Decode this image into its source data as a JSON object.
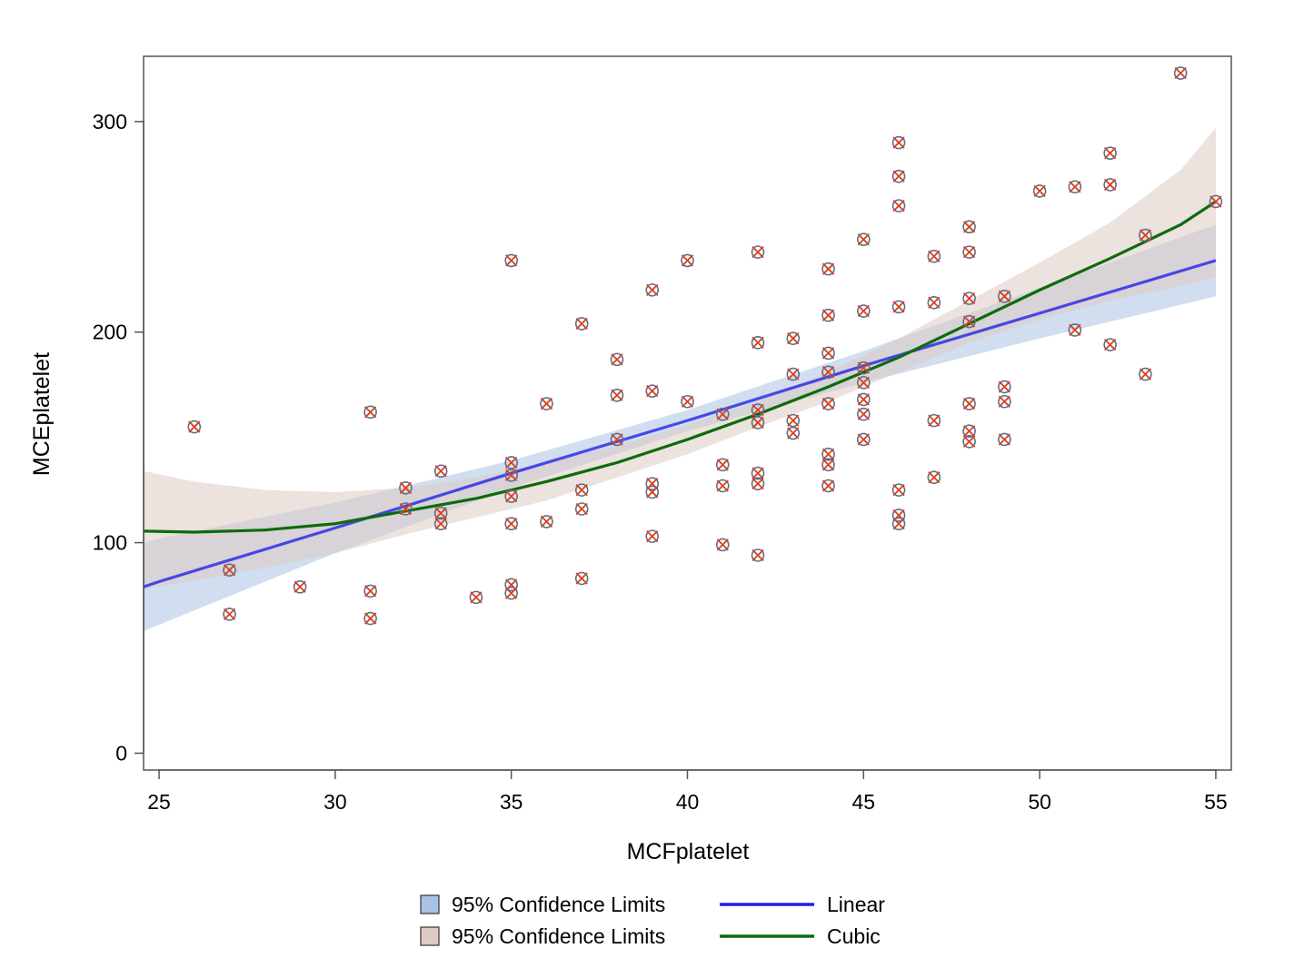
{
  "chart_data": {
    "type": "scatter",
    "xlabel": "MCFplatelet",
    "ylabel": "MCEplatelet",
    "xlim": [
      24.56,
      55.44
    ],
    "ylim": [
      -8,
      331
    ],
    "x_ticks": [
      25,
      30,
      35,
      40,
      45,
      50,
      55
    ],
    "x_tick_labels": [
      "25",
      "30",
      "35",
      "40",
      "45",
      "50",
      "55"
    ],
    "y_ticks": [
      0,
      100,
      200,
      300
    ],
    "y_tick_labels": [
      "0",
      "100",
      "200",
      "300"
    ],
    "grid": false,
    "legend_placement": "bottom-center",
    "colors": {
      "linear_band": "#a9c3e4",
      "cubic_band": "#dccbc2",
      "linear_line": "#1f1fe8",
      "cubic_line": "#0d6b0d",
      "marker_circle": "#5a6f8c",
      "marker_x": "#d9401c",
      "axis": "#555555"
    },
    "points": [
      {
        "x": 26,
        "y": 155
      },
      {
        "x": 27,
        "y": 87
      },
      {
        "x": 27,
        "y": 66
      },
      {
        "x": 29,
        "y": 79
      },
      {
        "x": 31,
        "y": 162
      },
      {
        "x": 31,
        "y": 77
      },
      {
        "x": 31,
        "y": 64
      },
      {
        "x": 32,
        "y": 126
      },
      {
        "x": 32,
        "y": 116
      },
      {
        "x": 33,
        "y": 134
      },
      {
        "x": 33,
        "y": 114
      },
      {
        "x": 33,
        "y": 109
      },
      {
        "x": 34,
        "y": 74
      },
      {
        "x": 35,
        "y": 234
      },
      {
        "x": 35,
        "y": 138
      },
      {
        "x": 35,
        "y": 132
      },
      {
        "x": 35,
        "y": 122
      },
      {
        "x": 35,
        "y": 109
      },
      {
        "x": 35,
        "y": 80
      },
      {
        "x": 35,
        "y": 76
      },
      {
        "x": 36,
        "y": 166
      },
      {
        "x": 36,
        "y": 110
      },
      {
        "x": 37,
        "y": 204
      },
      {
        "x": 37,
        "y": 125
      },
      {
        "x": 37,
        "y": 116
      },
      {
        "x": 37,
        "y": 83
      },
      {
        "x": 38,
        "y": 187
      },
      {
        "x": 38,
        "y": 170
      },
      {
        "x": 38,
        "y": 149
      },
      {
        "x": 39,
        "y": 220
      },
      {
        "x": 39,
        "y": 172
      },
      {
        "x": 39,
        "y": 128
      },
      {
        "x": 39,
        "y": 124
      },
      {
        "x": 39,
        "y": 103
      },
      {
        "x": 40,
        "y": 234
      },
      {
        "x": 40,
        "y": 167
      },
      {
        "x": 41,
        "y": 161
      },
      {
        "x": 41,
        "y": 137
      },
      {
        "x": 41,
        "y": 127
      },
      {
        "x": 41,
        "y": 99
      },
      {
        "x": 42,
        "y": 238
      },
      {
        "x": 42,
        "y": 195
      },
      {
        "x": 42,
        "y": 163
      },
      {
        "x": 42,
        "y": 157
      },
      {
        "x": 42,
        "y": 133
      },
      {
        "x": 42,
        "y": 128
      },
      {
        "x": 42,
        "y": 94
      },
      {
        "x": 43,
        "y": 197
      },
      {
        "x": 43,
        "y": 180
      },
      {
        "x": 43,
        "y": 158
      },
      {
        "x": 43,
        "y": 152
      },
      {
        "x": 44,
        "y": 230
      },
      {
        "x": 44,
        "y": 208
      },
      {
        "x": 44,
        "y": 190
      },
      {
        "x": 44,
        "y": 181
      },
      {
        "x": 44,
        "y": 166
      },
      {
        "x": 44,
        "y": 142
      },
      {
        "x": 44,
        "y": 137
      },
      {
        "x": 44,
        "y": 127
      },
      {
        "x": 45,
        "y": 244
      },
      {
        "x": 45,
        "y": 210
      },
      {
        "x": 45,
        "y": 183
      },
      {
        "x": 45,
        "y": 176
      },
      {
        "x": 45,
        "y": 168
      },
      {
        "x": 45,
        "y": 161
      },
      {
        "x": 45,
        "y": 149
      },
      {
        "x": 46,
        "y": 290
      },
      {
        "x": 46,
        "y": 274
      },
      {
        "x": 46,
        "y": 260
      },
      {
        "x": 46,
        "y": 212
      },
      {
        "x": 46,
        "y": 125
      },
      {
        "x": 46,
        "y": 113
      },
      {
        "x": 46,
        "y": 109
      },
      {
        "x": 47,
        "y": 236
      },
      {
        "x": 47,
        "y": 214
      },
      {
        "x": 47,
        "y": 158
      },
      {
        "x": 47,
        "y": 131
      },
      {
        "x": 48,
        "y": 250
      },
      {
        "x": 48,
        "y": 238
      },
      {
        "x": 48,
        "y": 216
      },
      {
        "x": 48,
        "y": 205
      },
      {
        "x": 48,
        "y": 166
      },
      {
        "x": 48,
        "y": 153
      },
      {
        "x": 48,
        "y": 148
      },
      {
        "x": 49,
        "y": 217
      },
      {
        "x": 49,
        "y": 174
      },
      {
        "x": 49,
        "y": 167
      },
      {
        "x": 49,
        "y": 149
      },
      {
        "x": 50,
        "y": 267
      },
      {
        "x": 51,
        "y": 269
      },
      {
        "x": 51,
        "y": 201
      },
      {
        "x": 52,
        "y": 285
      },
      {
        "x": 52,
        "y": 270
      },
      {
        "x": 52,
        "y": 194
      },
      {
        "x": 53,
        "y": 246
      },
      {
        "x": 53,
        "y": 180
      },
      {
        "x": 54,
        "y": 323
      },
      {
        "x": 55,
        "y": 262
      }
    ],
    "series": [
      {
        "name": "Linear",
        "fit": "linear",
        "curve": [
          {
            "x": 24.56,
            "y": 79
          },
          {
            "x": 25,
            "y": 81.5
          },
          {
            "x": 30,
            "y": 107
          },
          {
            "x": 35,
            "y": 133
          },
          {
            "x": 40,
            "y": 158
          },
          {
            "x": 45,
            "y": 184
          },
          {
            "x": 50,
            "y": 209
          },
          {
            "x": 55,
            "y": 234
          }
        ],
        "band": {
          "name": "95% Confidence Limits",
          "lower": [
            {
              "x": 24.56,
              "y": 58
            },
            {
              "x": 25,
              "y": 61
            },
            {
              "x": 30,
              "y": 95
            },
            {
              "x": 35,
              "y": 126
            },
            {
              "x": 40,
              "y": 153
            },
            {
              "x": 45,
              "y": 176
            },
            {
              "x": 50,
              "y": 197
            },
            {
              "x": 55,
              "y": 217
            }
          ],
          "upper": [
            {
              "x": 24.56,
              "y": 100
            },
            {
              "x": 25,
              "y": 102
            },
            {
              "x": 30,
              "y": 119
            },
            {
              "x": 35,
              "y": 139
            },
            {
              "x": 40,
              "y": 163
            },
            {
              "x": 45,
              "y": 191
            },
            {
              "x": 50,
              "y": 221
            },
            {
              "x": 55,
              "y": 251
            }
          ]
        }
      },
      {
        "name": "Cubic",
        "fit": "cubic",
        "curve": [
          {
            "x": 24.56,
            "y": 105.5
          },
          {
            "x": 26,
            "y": 105
          },
          {
            "x": 28,
            "y": 106
          },
          {
            "x": 30,
            "y": 109
          },
          {
            "x": 32,
            "y": 115
          },
          {
            "x": 34,
            "y": 121
          },
          {
            "x": 36,
            "y": 129
          },
          {
            "x": 38,
            "y": 138
          },
          {
            "x": 40,
            "y": 149
          },
          {
            "x": 42,
            "y": 161
          },
          {
            "x": 44,
            "y": 174
          },
          {
            "x": 46,
            "y": 188
          },
          {
            "x": 48,
            "y": 204
          },
          {
            "x": 50,
            "y": 220
          },
          {
            "x": 52,
            "y": 235
          },
          {
            "x": 54,
            "y": 251
          },
          {
            "x": 55,
            "y": 262
          }
        ],
        "band": {
          "name": "95% Confidence Limits",
          "lower": [
            {
              "x": 24.56,
              "y": 78
            },
            {
              "x": 26,
              "y": 82
            },
            {
              "x": 28,
              "y": 88
            },
            {
              "x": 30,
              "y": 95
            },
            {
              "x": 32,
              "y": 104
            },
            {
              "x": 34,
              "y": 112
            },
            {
              "x": 36,
              "y": 120
            },
            {
              "x": 38,
              "y": 131
            },
            {
              "x": 40,
              "y": 142
            },
            {
              "x": 42,
              "y": 155
            },
            {
              "x": 44,
              "y": 167
            },
            {
              "x": 46,
              "y": 181
            },
            {
              "x": 48,
              "y": 195
            },
            {
              "x": 50,
              "y": 206
            },
            {
              "x": 52,
              "y": 215
            },
            {
              "x": 54,
              "y": 222
            },
            {
              "x": 55,
              "y": 226
            }
          ],
          "upper": [
            {
              "x": 24.56,
              "y": 134
            },
            {
              "x": 26,
              "y": 129
            },
            {
              "x": 28,
              "y": 125
            },
            {
              "x": 30,
              "y": 124
            },
            {
              "x": 32,
              "y": 126
            },
            {
              "x": 34,
              "y": 131
            },
            {
              "x": 36,
              "y": 138
            },
            {
              "x": 38,
              "y": 146
            },
            {
              "x": 40,
              "y": 156
            },
            {
              "x": 42,
              "y": 167
            },
            {
              "x": 44,
              "y": 181
            },
            {
              "x": 46,
              "y": 197
            },
            {
              "x": 48,
              "y": 215
            },
            {
              "x": 50,
              "y": 233
            },
            {
              "x": 52,
              "y": 252
            },
            {
              "x": 54,
              "y": 277
            },
            {
              "x": 55,
              "y": 297
            }
          ]
        }
      }
    ],
    "legend": [
      {
        "label": "95% Confidence Limits",
        "kind": "band",
        "color": "#a9c3e4"
      },
      {
        "label": "95% Confidence Limits",
        "kind": "band",
        "color": "#dccbc2"
      },
      {
        "label": "Linear",
        "kind": "line",
        "color": "#1f1fe8"
      },
      {
        "label": "Cubic",
        "kind": "line",
        "color": "#0d6b0d"
      }
    ]
  }
}
